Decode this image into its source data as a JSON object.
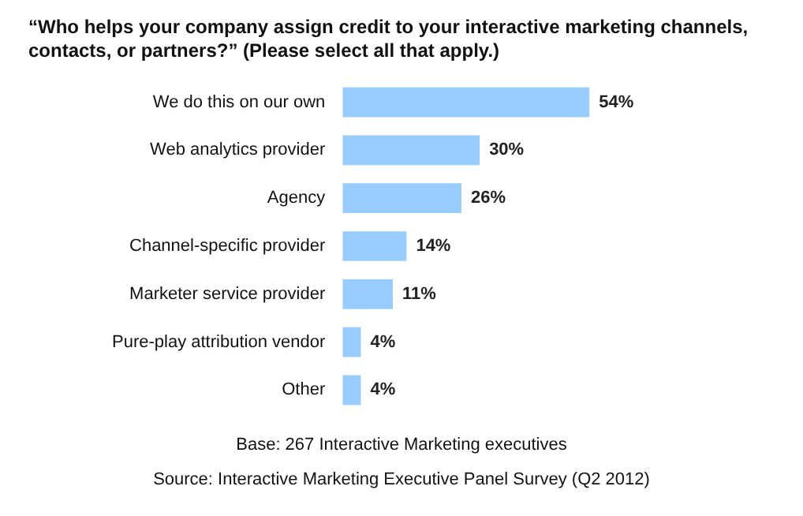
{
  "chart_data": {
    "type": "bar",
    "orientation": "horizontal",
    "title": "“Who helps your company assign credit to your interactive marketing channels, contacts, or partners?” (Please select all that apply.)",
    "categories": [
      "We do this on our own",
      "Web analytics provider",
      "Agency",
      "Channel-specific provider",
      "Marketer service provider",
      "Pure-play attribution vendor",
      "Other"
    ],
    "values": [
      54,
      30,
      26,
      14,
      11,
      4,
      4
    ],
    "value_labels": [
      "54%",
      "30%",
      "26%",
      "14%",
      "11%",
      "4%",
      "4%"
    ],
    "color": "#99ccff",
    "annotations": [
      "Base: 267 Interactive Marketing executives",
      "Source: Interactive Marketing Executive Panel Survey (Q2 2012)"
    ],
    "legend": false
  }
}
